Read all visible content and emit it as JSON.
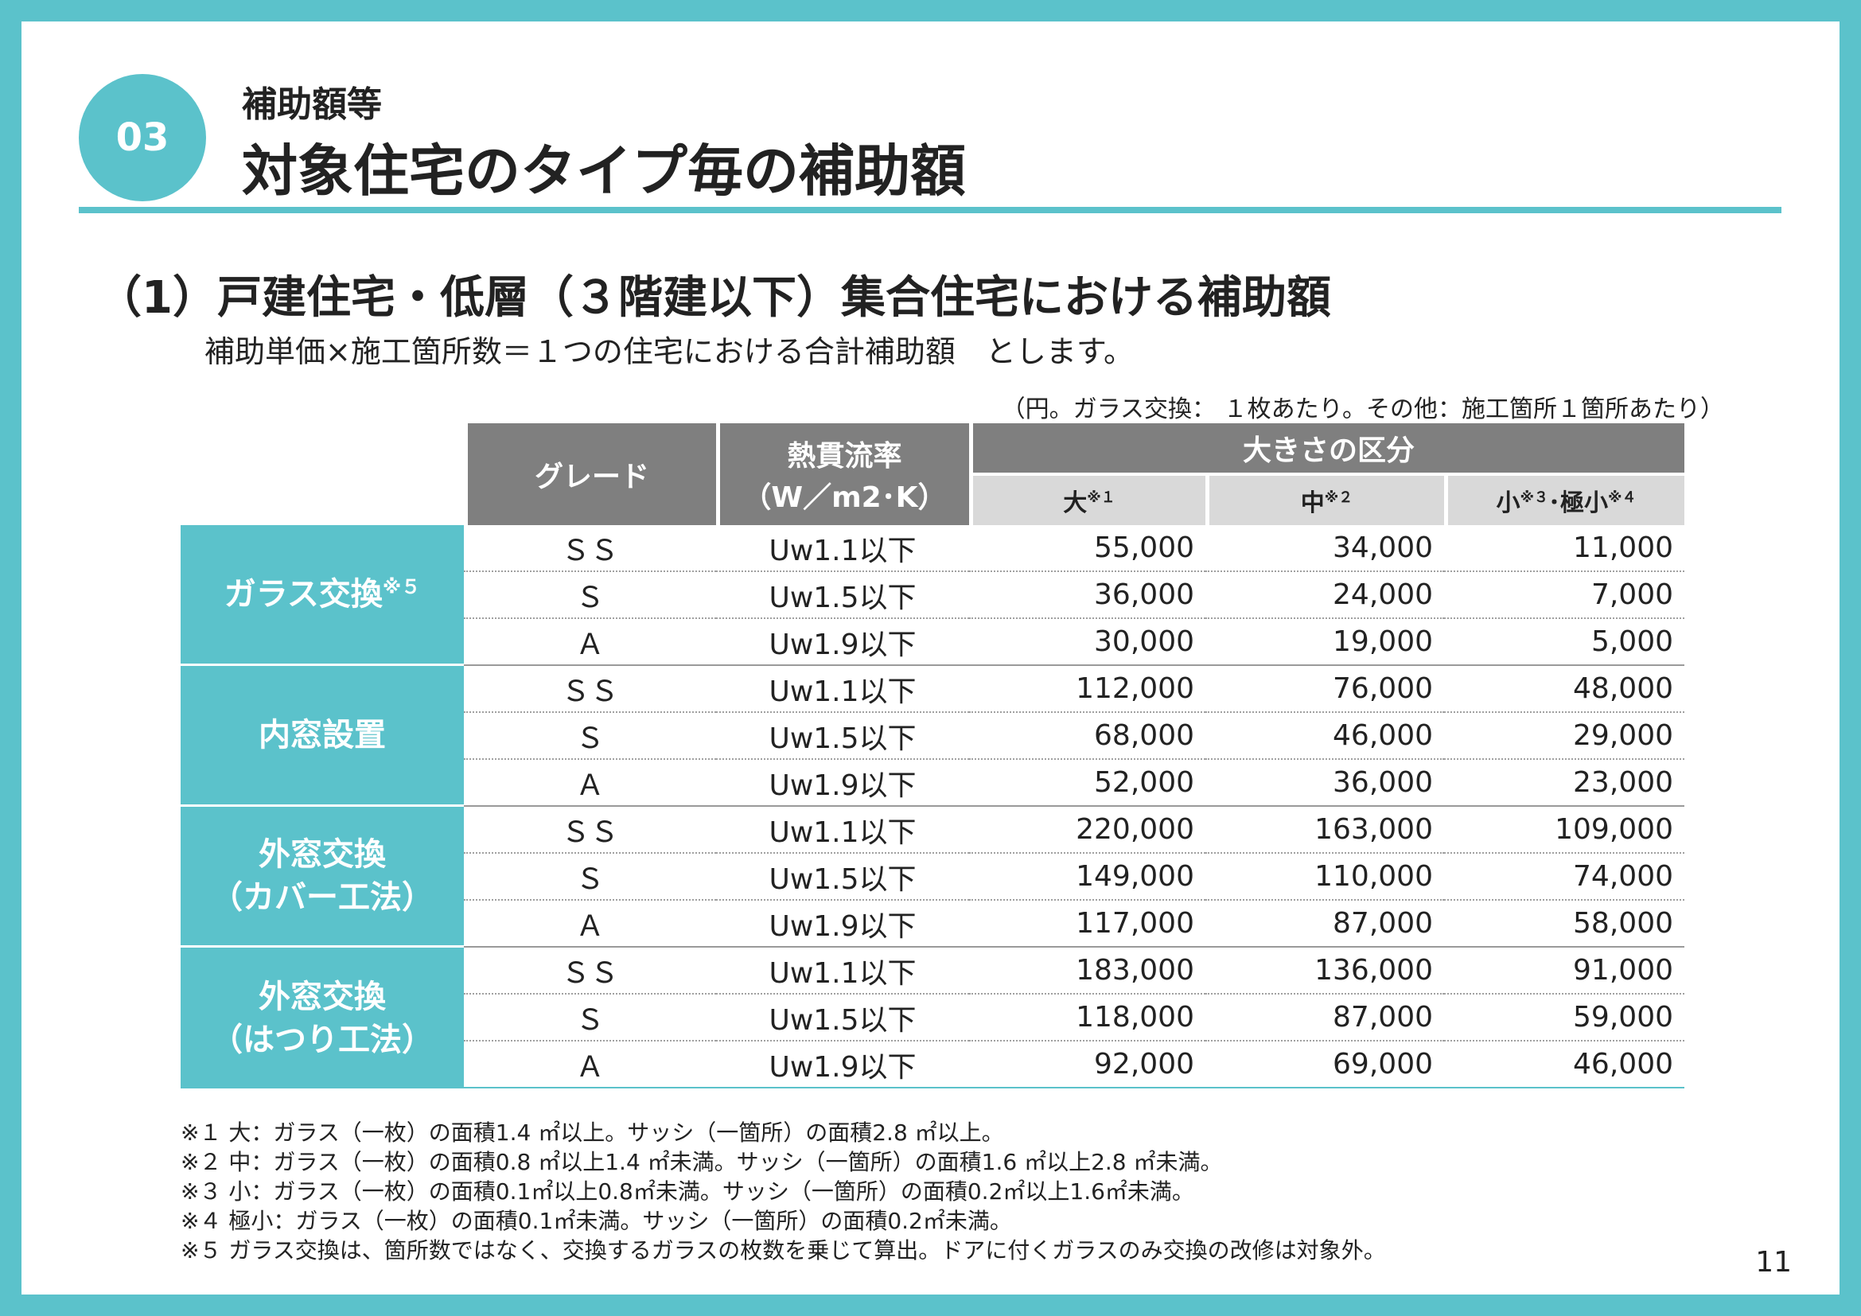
{
  "header": {
    "badge": "03",
    "section_label": "補助額等",
    "title": "対象住宅のタイプ毎の補助額"
  },
  "subtitle": "（1）戸建住宅・低層（３階建以下）集合住宅における補助額",
  "formula": "補助単価×施工箇所数＝１つの住宅における合計補助額　とします。",
  "unit_note": "（円。ガラス交換： １枚あたり。その他：施工箇所１箇所あたり）",
  "table": {
    "col_grade": "グレード",
    "col_rate_line1": "熱貫流率",
    "col_rate_line2": "（W／m2･K）",
    "col_size": "大きさの区分",
    "size_large": "大",
    "size_large_note": "※１",
    "size_medium": "中",
    "size_medium_note": "※２",
    "size_small": "小",
    "size_small_note": "※３",
    "size_small_sep": "･",
    "size_xsmall": "極小",
    "size_xsmall_note": "※４",
    "groups": [
      {
        "line1": "ガラス交換",
        "note": "※５",
        "line2": "",
        "rows": [
          {
            "grade": "ＳＳ",
            "rate": "Uw1.1以下",
            "large": "55,000",
            "medium": "34,000",
            "small": "11,000"
          },
          {
            "grade": "Ｓ",
            "rate": "Uw1.5以下",
            "large": "36,000",
            "medium": "24,000",
            "small": "7,000"
          },
          {
            "grade": "Ａ",
            "rate": "Uw1.9以下",
            "large": "30,000",
            "medium": "19,000",
            "small": "5,000"
          }
        ]
      },
      {
        "line1": "内窓設置",
        "note": "",
        "line2": "",
        "rows": [
          {
            "grade": "ＳＳ",
            "rate": "Uw1.1以下",
            "large": "112,000",
            "medium": "76,000",
            "small": "48,000"
          },
          {
            "grade": "Ｓ",
            "rate": "Uw1.5以下",
            "large": "68,000",
            "medium": "46,000",
            "small": "29,000"
          },
          {
            "grade": "Ａ",
            "rate": "Uw1.9以下",
            "large": "52,000",
            "medium": "36,000",
            "small": "23,000"
          }
        ]
      },
      {
        "line1": "外窓交換",
        "note": "",
        "line2": "（カバー工法）",
        "rows": [
          {
            "grade": "ＳＳ",
            "rate": "Uw1.1以下",
            "large": "220,000",
            "medium": "163,000",
            "small": "109,000"
          },
          {
            "grade": "Ｓ",
            "rate": "Uw1.5以下",
            "large": "149,000",
            "medium": "110,000",
            "small": "74,000"
          },
          {
            "grade": "Ａ",
            "rate": "Uw1.9以下",
            "large": "117,000",
            "medium": "87,000",
            "small": "58,000"
          }
        ]
      },
      {
        "line1": "外窓交換",
        "note": "",
        "line2": "（はつり工法）",
        "rows": [
          {
            "grade": "ＳＳ",
            "rate": "Uw1.1以下",
            "large": "183,000",
            "medium": "136,000",
            "small": "91,000"
          },
          {
            "grade": "Ｓ",
            "rate": "Uw1.5以下",
            "large": "118,000",
            "medium": "87,000",
            "small": "59,000"
          },
          {
            "grade": "Ａ",
            "rate": "Uw1.9以下",
            "large": "92,000",
            "medium": "69,000",
            "small": "46,000"
          }
        ]
      }
    ]
  },
  "notes": [
    "※１ 大：ガラス（一枚）の面積1.4 ㎡以上。サッシ（一箇所）の面積2.8 ㎡以上。",
    "※２ 中：ガラス（一枚）の面積0.8 ㎡以上1.4 ㎡未満。サッシ（一箇所）の面積1.6 ㎡以上2.8 ㎡未満。",
    "※３ 小：ガラス（一枚）の面積0.1㎡以上0.8㎡未満。サッシ（一箇所）の面積0.2㎡以上1.6㎡未満。",
    "※４ 極小：ガラス（一枚）の面積0.1㎡未満。サッシ（一箇所）の面積0.2㎡未満。",
    "※５ ガラス交換は、箇所数ではなく、交換するガラスの枚数を乗じて算出。ドアに付くガラスのみ交換の改修は対象外。"
  ],
  "page_number": "11",
  "colors": {
    "accent": "#5bc2cb",
    "header_gray": "#7f7f7f",
    "subheader_gray": "#d9d9d9"
  }
}
